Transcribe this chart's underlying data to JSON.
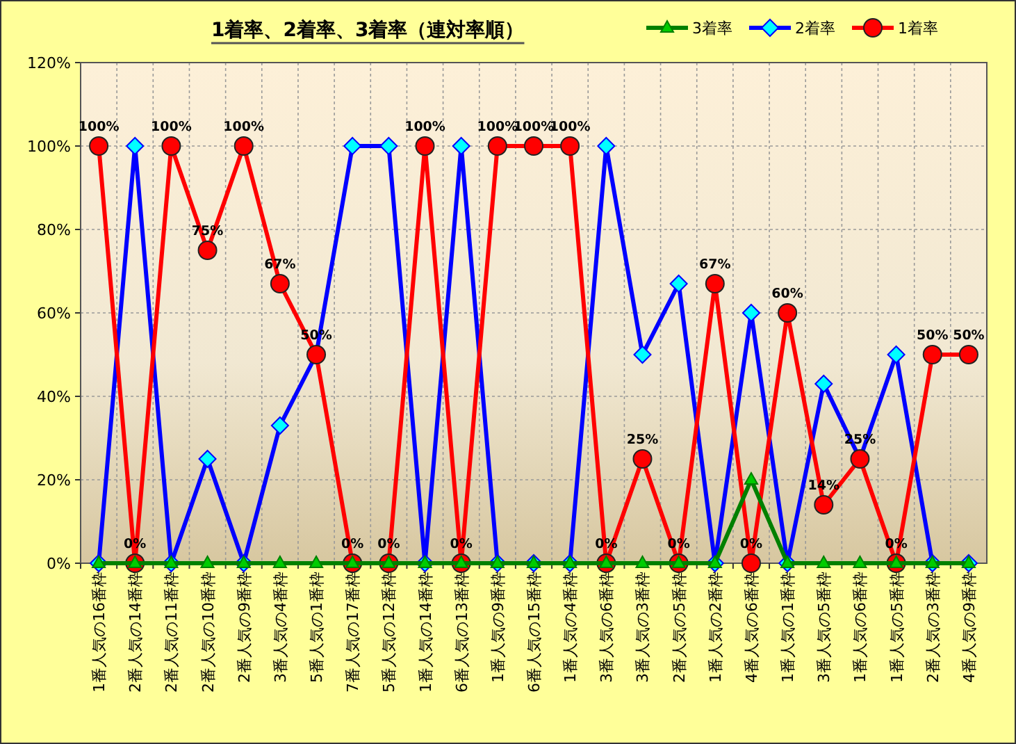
{
  "chart_data": {
    "type": "line",
    "title": "1着率、2着率、3着率（連対率順）",
    "categories": [
      "1番人気の16番枠",
      "2番人気の14番枠",
      "2番人気の11番枠",
      "2番人気の10番枠",
      "2番人気の9番枠",
      "3番人気の4番枠",
      "5番人気の1番枠",
      "7番人気の17番枠",
      "5番人気の12番枠",
      "1番人気の14番枠",
      "6番人気の13番枠",
      "1番人気の9番枠",
      "6番人気の15番枠",
      "1番人気の4番枠",
      "3番人気の6番枠",
      "3番人気の3番枠",
      "2番人気の5番枠",
      "1番人気の2番枠",
      "4番人気の6番枠",
      "1番人気の1番枠",
      "3番人気の5番枠",
      "1番人気の6番枠",
      "1番人気の5番枠",
      "2番人気の3番枠",
      "4番人気の9番枠"
    ],
    "series": [
      {
        "name": "3着率",
        "color": "#008000",
        "marker": "triangle",
        "values": [
          0,
          0,
          0,
          0,
          0,
          0,
          0,
          0,
          0,
          0,
          0,
          0,
          0,
          0,
          0,
          0,
          0,
          0,
          20,
          0,
          0,
          0,
          0,
          0,
          0
        ]
      },
      {
        "name": "2着率",
        "color": "#0000ff",
        "marker": "diamond",
        "values": [
          0,
          100,
          0,
          25,
          0,
          33,
          50,
          100,
          100,
          0,
          100,
          0,
          0,
          0,
          100,
          50,
          67,
          0,
          60,
          0,
          43,
          25,
          50,
          0,
          0
        ]
      },
      {
        "name": "1着率",
        "color": "#ff0000",
        "marker": "circle",
        "values": [
          100,
          0,
          100,
          75,
          100,
          67,
          50,
          0,
          0,
          100,
          0,
          100,
          100,
          100,
          0,
          25,
          0,
          67,
          0,
          60,
          14,
          25,
          0,
          50,
          50
        ],
        "value_labels": [
          "100%",
          "0%",
          "100%",
          "75%",
          "100%",
          "67%",
          "50%",
          "0%",
          "0%",
          "100%",
          "0%",
          "100%",
          "100%",
          "100%",
          "0%",
          "25%",
          "0%",
          "67%",
          "0%",
          "60%",
          "14%",
          "25%",
          "0%",
          "50%",
          "50%"
        ]
      }
    ],
    "ylim": [
      0,
      120
    ],
    "yticks": [
      {
        "value": 0,
        "label": "0%"
      },
      {
        "value": 20,
        "label": "20%"
      },
      {
        "value": 40,
        "label": "40%"
      },
      {
        "value": 60,
        "label": "60%"
      },
      {
        "value": 80,
        "label": "80%"
      },
      {
        "value": 100,
        "label": "100%"
      },
      {
        "value": 120,
        "label": "120%"
      }
    ],
    "grid": true,
    "legend": "top right",
    "line_style": "solid"
  }
}
